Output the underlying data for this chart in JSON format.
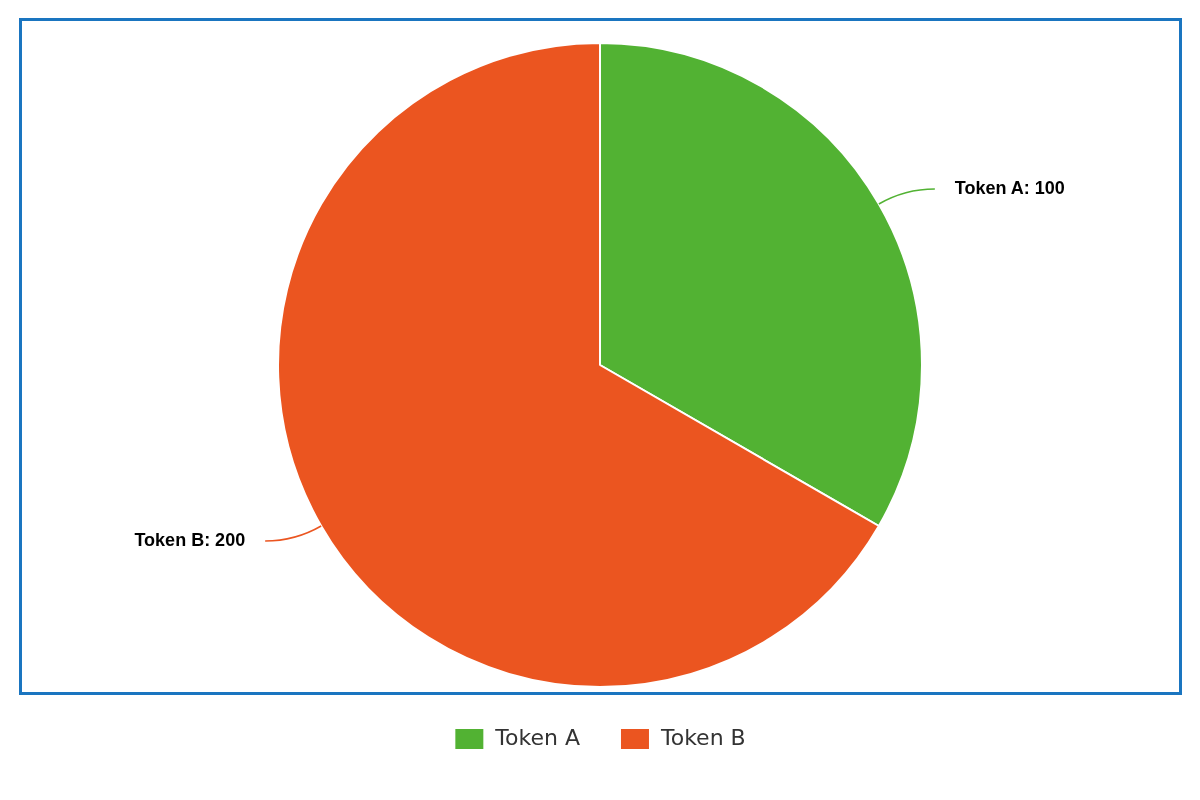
{
  "chart_data": {
    "type": "pie",
    "categories": [
      "Token A",
      "Token B"
    ],
    "values": [
      100,
      200
    ],
    "colors": [
      "#52b233",
      "#eb5520"
    ],
    "value_labels": [
      "Token A: 100",
      "Token B: 200"
    ],
    "legend": "bottom"
  }
}
